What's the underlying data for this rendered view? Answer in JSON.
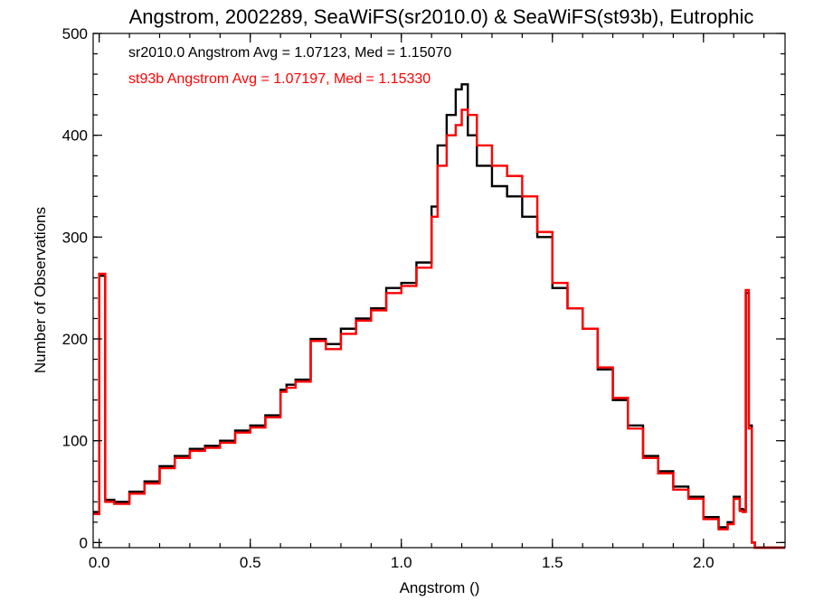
{
  "chart_data": {
    "type": "line",
    "step": true,
    "title": "Angstrom, 2002289, SeaWiFS(sr2010.0) & SeaWiFS(st93b), Eutrophic",
    "xlabel": "Angstrom ()",
    "ylabel": "Number of Observations",
    "xlim": [
      -0.02,
      2.27
    ],
    "ylim": [
      -5,
      500
    ],
    "xticks": [
      0.0,
      0.5,
      1.0,
      1.5,
      2.0
    ],
    "xtick_labels": [
      "0.0",
      "0.5",
      "1.0",
      "1.5",
      "2.0"
    ],
    "yticks": [
      0,
      100,
      200,
      300,
      400,
      500
    ],
    "ytick_labels": [
      "0",
      "100",
      "200",
      "300",
      "400",
      "500"
    ],
    "grid": false,
    "legend_position": "top-left",
    "series": [
      {
        "name": "sr2010.0",
        "label": "sr2010.0 Angstrom Avg = 1.07123, Med = 1.15070",
        "color": "#000000",
        "x": [
          -0.02,
          0.0,
          0.02,
          0.05,
          0.1,
          0.15,
          0.2,
          0.25,
          0.3,
          0.35,
          0.4,
          0.45,
          0.5,
          0.55,
          0.6,
          0.62,
          0.65,
          0.7,
          0.75,
          0.8,
          0.85,
          0.9,
          0.95,
          1.0,
          1.05,
          1.1,
          1.12,
          1.15,
          1.18,
          1.2,
          1.22,
          1.25,
          1.3,
          1.35,
          1.4,
          1.45,
          1.5,
          1.55,
          1.6,
          1.65,
          1.7,
          1.75,
          1.8,
          1.85,
          1.9,
          1.95,
          2.0,
          2.05,
          2.08,
          2.1,
          2.12,
          2.13,
          2.14,
          2.15,
          2.16,
          2.17,
          2.27
        ],
        "y": [
          30,
          262,
          42,
          40,
          50,
          60,
          75,
          85,
          92,
          95,
          100,
          110,
          115,
          125,
          150,
          155,
          160,
          200,
          195,
          210,
          220,
          230,
          250,
          255,
          275,
          330,
          390,
          420,
          445,
          450,
          400,
          370,
          350,
          340,
          320,
          300,
          250,
          230,
          210,
          170,
          140,
          115,
          85,
          70,
          55,
          45,
          25,
          15,
          20,
          45,
          33,
          32,
          245,
          115,
          0,
          -5,
          -5
        ]
      },
      {
        "name": "st93b",
        "label": "st93b Angstrom Avg = 1.07197, Med = 1.15330",
        "color": "#ff0000",
        "x": [
          -0.02,
          0.0,
          0.02,
          0.05,
          0.1,
          0.15,
          0.2,
          0.25,
          0.3,
          0.35,
          0.4,
          0.45,
          0.5,
          0.55,
          0.6,
          0.62,
          0.65,
          0.7,
          0.75,
          0.8,
          0.85,
          0.9,
          0.95,
          1.0,
          1.05,
          1.1,
          1.12,
          1.15,
          1.18,
          1.2,
          1.22,
          1.25,
          1.3,
          1.35,
          1.4,
          1.45,
          1.5,
          1.55,
          1.6,
          1.65,
          1.7,
          1.75,
          1.8,
          1.85,
          1.9,
          1.95,
          2.0,
          2.05,
          2.08,
          2.1,
          2.12,
          2.13,
          2.14,
          2.15,
          2.16,
          2.17,
          2.27
        ],
        "y": [
          28,
          264,
          40,
          38,
          48,
          58,
          73,
          83,
          90,
          93,
          98,
          108,
          113,
          123,
          148,
          152,
          158,
          198,
          190,
          205,
          218,
          228,
          245,
          252,
          270,
          320,
          370,
          400,
          410,
          425,
          420,
          390,
          370,
          360,
          340,
          305,
          255,
          230,
          210,
          172,
          142,
          112,
          83,
          68,
          52,
          43,
          23,
          13,
          18,
          43,
          31,
          30,
          248,
          112,
          0,
          -5,
          -5
        ]
      }
    ]
  }
}
